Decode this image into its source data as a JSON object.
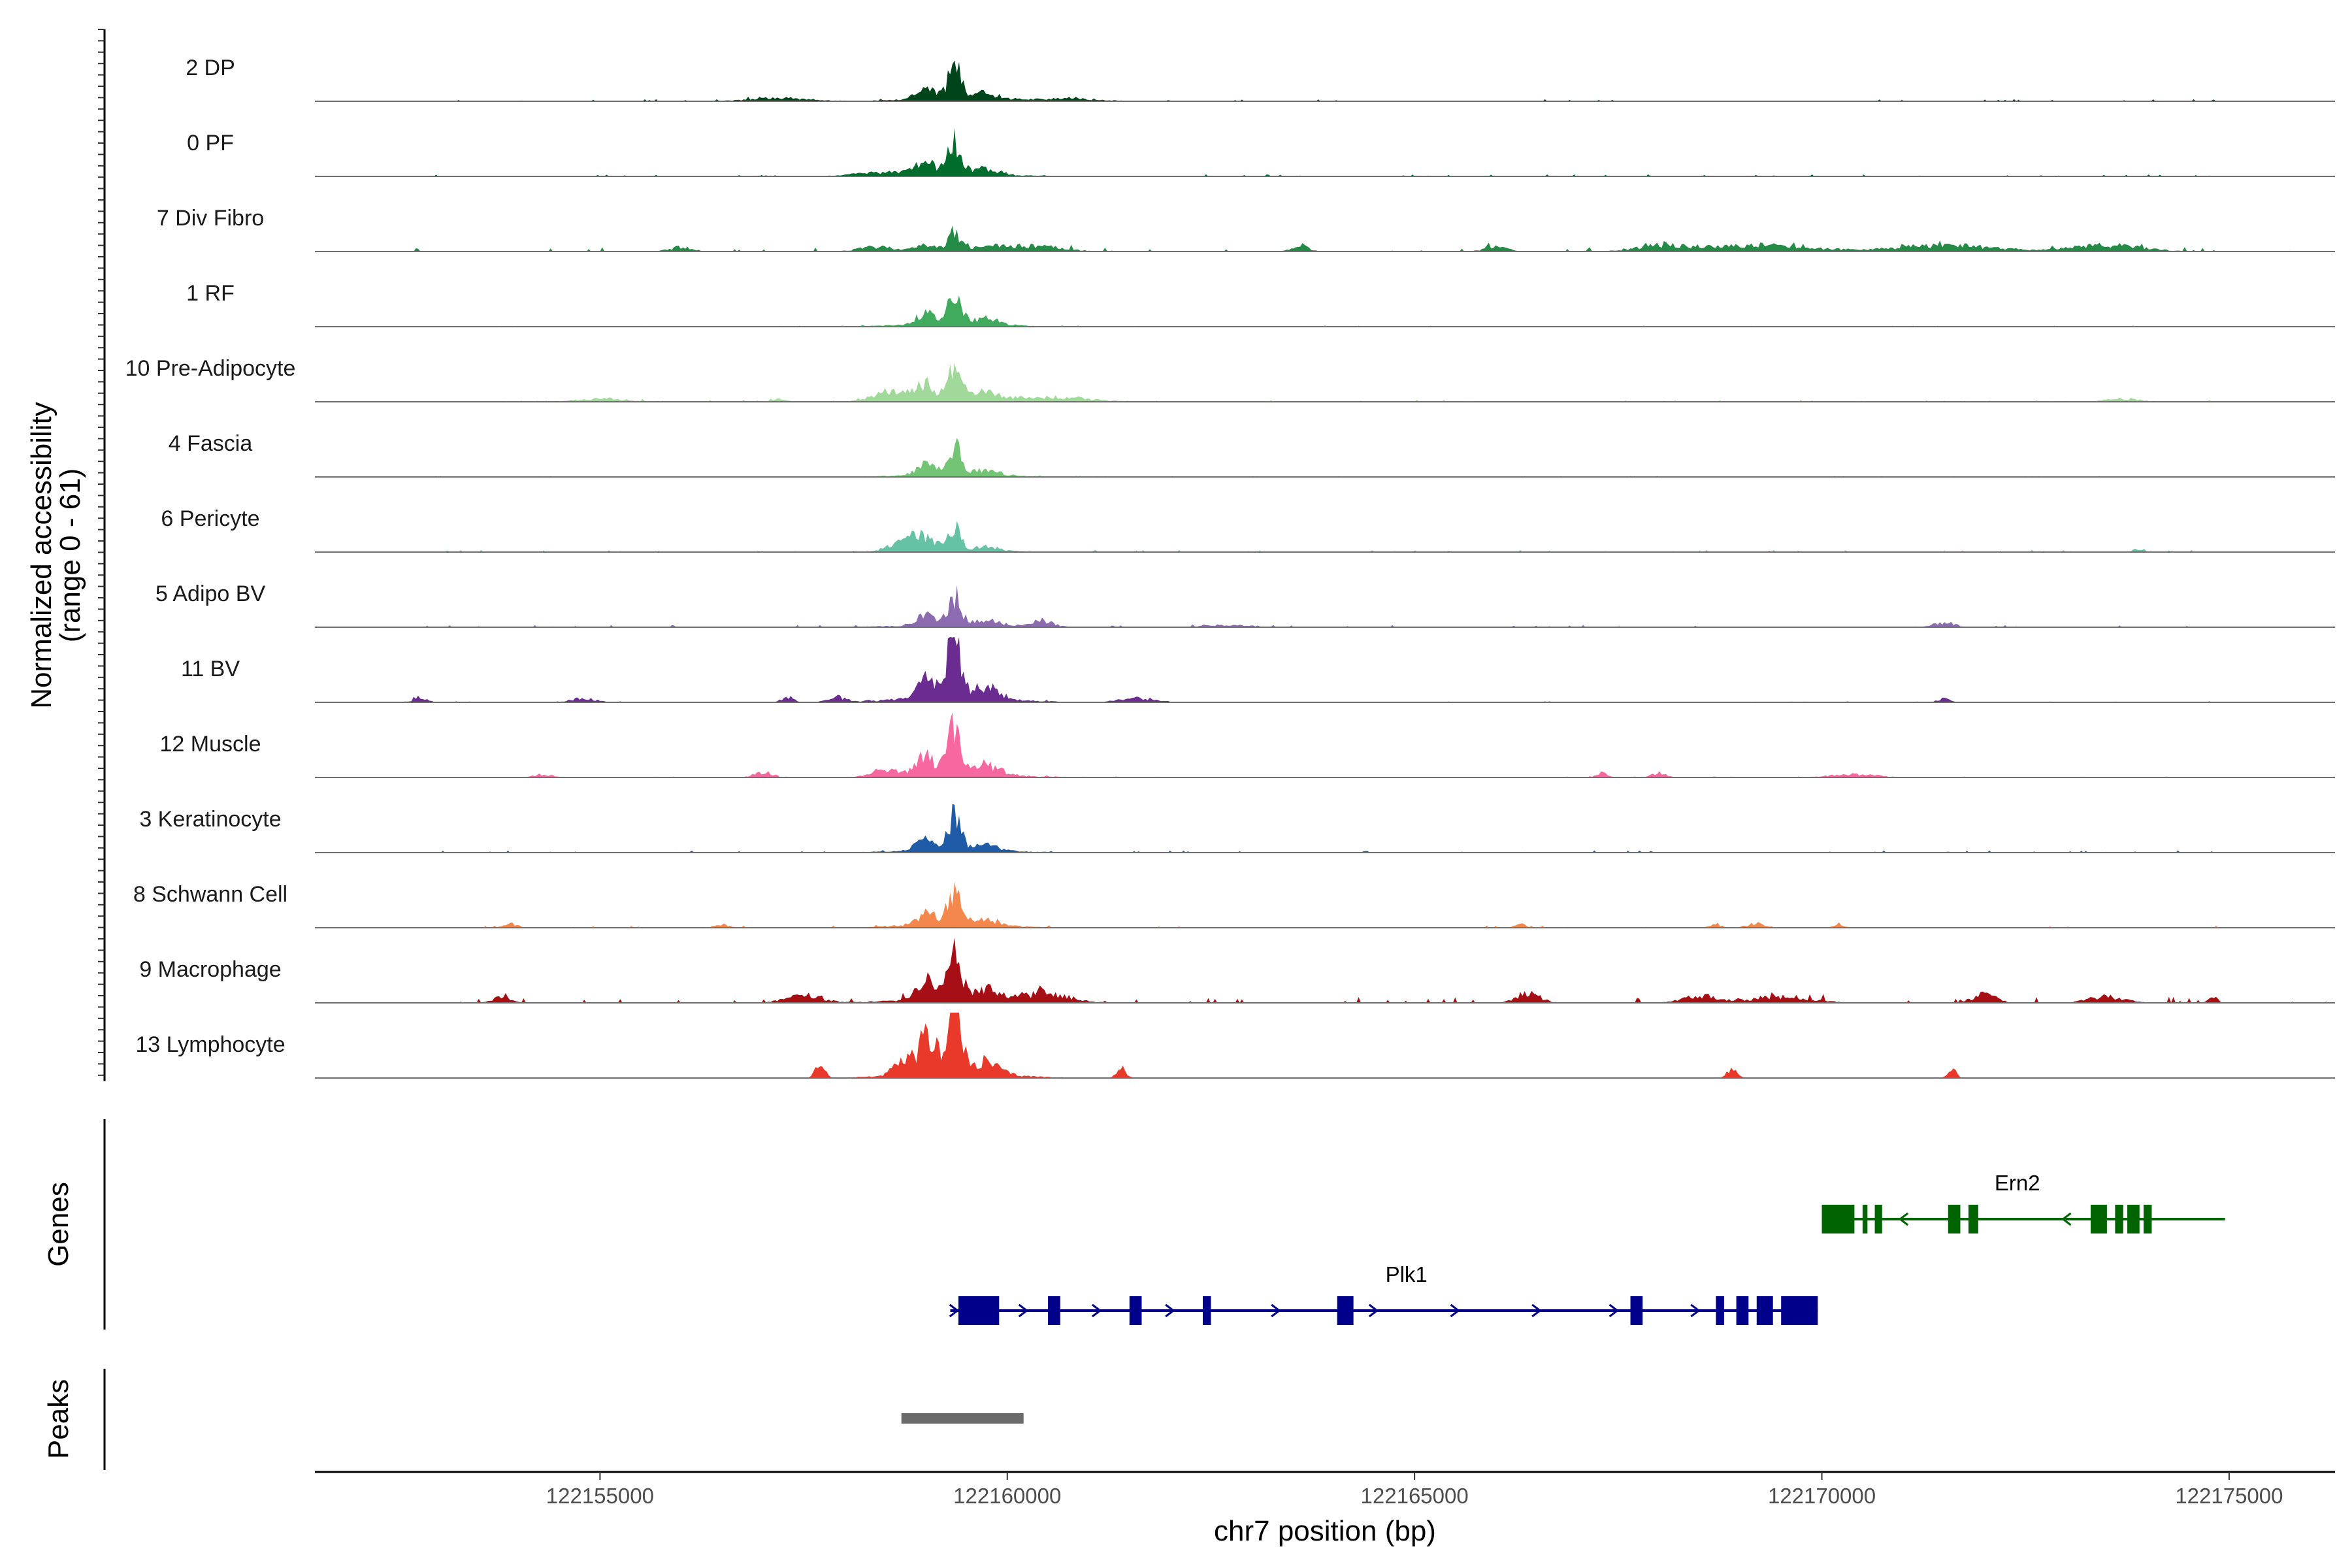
{
  "chart_data": {
    "type": "area",
    "title": "",
    "ylabel": "Normalized accessibility\n(range 0 - 61)",
    "y_range": [
      0,
      61
    ],
    "xlabel": "chr7 position (bp)",
    "xlim": [
      122151500,
      122176300
    ],
    "x_ticks": [
      122155000,
      122160000,
      122165000,
      122170000,
      122175000
    ],
    "x_tick_labels": [
      "122155000",
      "122160000",
      "122165000",
      "122170000",
      "122175000"
    ],
    "main_peak_center": 122159350,
    "series": [
      {
        "name": "2 DP",
        "color": "#00441b",
        "peak": 30,
        "bg": 2,
        "seed": 11,
        "bumps": [
          [
            122157200,
            3,
            500
          ],
          [
            122160700,
            2,
            600
          ]
        ]
      },
      {
        "name": "0 PF",
        "color": "#006d2c",
        "peak": 30,
        "bg": 2,
        "seed": 12,
        "bumps": [
          [
            122158500,
            3,
            500
          ]
        ]
      },
      {
        "name": "7 Div Fibro",
        "color": "#238b45",
        "peak": 15,
        "bg": 4,
        "seed": 13,
        "bumps": [
          [
            122156000,
            4,
            200
          ],
          [
            122158400,
            4,
            300
          ],
          [
            122160300,
            5,
            500
          ],
          [
            122163600,
            5,
            150
          ],
          [
            122166000,
            4,
            200
          ],
          [
            122168000,
            5,
            400
          ],
          [
            122169200,
            6,
            900
          ],
          [
            122171500,
            6,
            800
          ],
          [
            122173500,
            6,
            600
          ]
        ]
      },
      {
        "name": "1 RF",
        "color": "#41ab5d",
        "peak": 30,
        "bg": 1,
        "seed": 14,
        "bumps": []
      },
      {
        "name": "10 Pre-Adipocyte",
        "color": "#a1d99b",
        "peak": 36,
        "bg": 2,
        "seed": 15,
        "bumps": [
          [
            122155000,
            3,
            400
          ],
          [
            122157200,
            3,
            120
          ],
          [
            122158600,
            9,
            300
          ],
          [
            122160600,
            4,
            600
          ],
          [
            122173700,
            3,
            300
          ]
        ]
      },
      {
        "name": "4 Fascia",
        "color": "#74c476",
        "peak": 27,
        "bg": 1,
        "seed": 16,
        "bumps": []
      },
      {
        "name": "6 Pericyte",
        "color": "#66c2a5",
        "peak": 20,
        "bg": 2,
        "seed": 17,
        "bumps": [
          [
            122158800,
            10,
            300
          ],
          [
            122173900,
            3,
            100
          ]
        ]
      },
      {
        "name": "5 Adipo BV",
        "color": "#8c6bb1",
        "peak": 27,
        "bg": 2,
        "seed": 18,
        "bumps": [
          [
            122160400,
            6,
            200
          ],
          [
            122162700,
            2,
            400
          ],
          [
            122171500,
            4,
            200
          ]
        ]
      },
      {
        "name": "11 BV",
        "color": "#6a2c91",
        "peak": 61,
        "bg": 1,
        "seed": 19,
        "bumps": [
          [
            122152700,
            5,
            200
          ],
          [
            122154800,
            4,
            200
          ],
          [
            122157300,
            5,
            100
          ],
          [
            122157900,
            5,
            150
          ],
          [
            122161600,
            4,
            300
          ],
          [
            122171500,
            4,
            100
          ]
        ]
      },
      {
        "name": "12 Muscle",
        "color": "#f768a1",
        "peak": 48,
        "bg": 1,
        "seed": 20,
        "bumps": [
          [
            122154300,
            3,
            150
          ],
          [
            122157000,
            5,
            150
          ],
          [
            122158500,
            7,
            200
          ],
          [
            122167300,
            4,
            100
          ],
          [
            122168000,
            4,
            120
          ],
          [
            122170400,
            3,
            400
          ]
        ]
      },
      {
        "name": "3 Keratinocyte",
        "color": "#1f5ba6",
        "peak": 30,
        "bg": 2,
        "seed": 21,
        "bumps": []
      },
      {
        "name": "8 Schwann Cell",
        "color": "#f4874b",
        "peak": 33,
        "bg": 2,
        "seed": 22,
        "bumps": [
          [
            122153900,
            4,
            120
          ],
          [
            122156500,
            3,
            120
          ],
          [
            122166300,
            3,
            100
          ],
          [
            122168700,
            3,
            100
          ],
          [
            122169200,
            4,
            150
          ],
          [
            122170200,
            3,
            100
          ]
        ]
      },
      {
        "name": "9 Macrophage",
        "color": "#a50f15",
        "peak": 52,
        "bg": 6,
        "seed": 23,
        "bumps": [
          [
            122153800,
            6,
            150
          ],
          [
            122157500,
            7,
            300
          ],
          [
            122160500,
            8,
            400
          ],
          [
            122166400,
            9,
            200
          ],
          [
            122168500,
            7,
            300
          ],
          [
            122169500,
            6,
            500
          ],
          [
            122172000,
            8,
            200
          ],
          [
            122173500,
            6,
            300
          ],
          [
            122174800,
            5,
            80
          ]
        ]
      },
      {
        "name": "13 Lymphocyte",
        "color": "#e8392b",
        "peak": 61,
        "bg": 0,
        "seed": 24,
        "bumps": [
          [
            122157700,
            12,
            80
          ],
          [
            122158700,
            10,
            150
          ],
          [
            122159100,
            12,
            250
          ],
          [
            122161400,
            9,
            80
          ],
          [
            122168900,
            9,
            80
          ],
          [
            122171600,
            7,
            80
          ]
        ]
      }
    ],
    "genes_label": "Genes",
    "genes": [
      {
        "name": "Ern2",
        "strand": "-",
        "color": "#006400",
        "start": 122170000,
        "end": 122174950,
        "exons": [
          [
            122170000,
            122170400
          ],
          [
            122170500,
            122170560
          ],
          [
            122170650,
            122170740
          ],
          [
            122171550,
            122171700
          ],
          [
            122171800,
            122171920
          ],
          [
            122173300,
            122173500
          ],
          [
            122173600,
            122173700
          ],
          [
            122173750,
            122173900
          ],
          [
            122173950,
            122174050
          ]
        ],
        "arrows": [
          122171000,
          122173000
        ]
      },
      {
        "name": "Plk1",
        "strand": "+",
        "color": "#00008b",
        "start": 122159300,
        "end": 122169950,
        "exons": [
          [
            122159400,
            122159900
          ],
          [
            122160500,
            122160650
          ],
          [
            122161500,
            122161650
          ],
          [
            122162400,
            122162500
          ],
          [
            122164050,
            122164250
          ],
          [
            122167650,
            122167800
          ],
          [
            122168700,
            122168800
          ],
          [
            122168950,
            122169100
          ],
          [
            122169200,
            122169400
          ],
          [
            122169500,
            122169950
          ]
        ],
        "arrows": [
          122159350,
          122160200,
          122161100,
          122162000,
          122163300,
          122164500,
          122165500,
          122166500,
          122167450,
          122168450
        ]
      }
    ],
    "peaks_label": "Peaks",
    "peaks": [
      [
        122158700,
        122160200
      ]
    ]
  }
}
